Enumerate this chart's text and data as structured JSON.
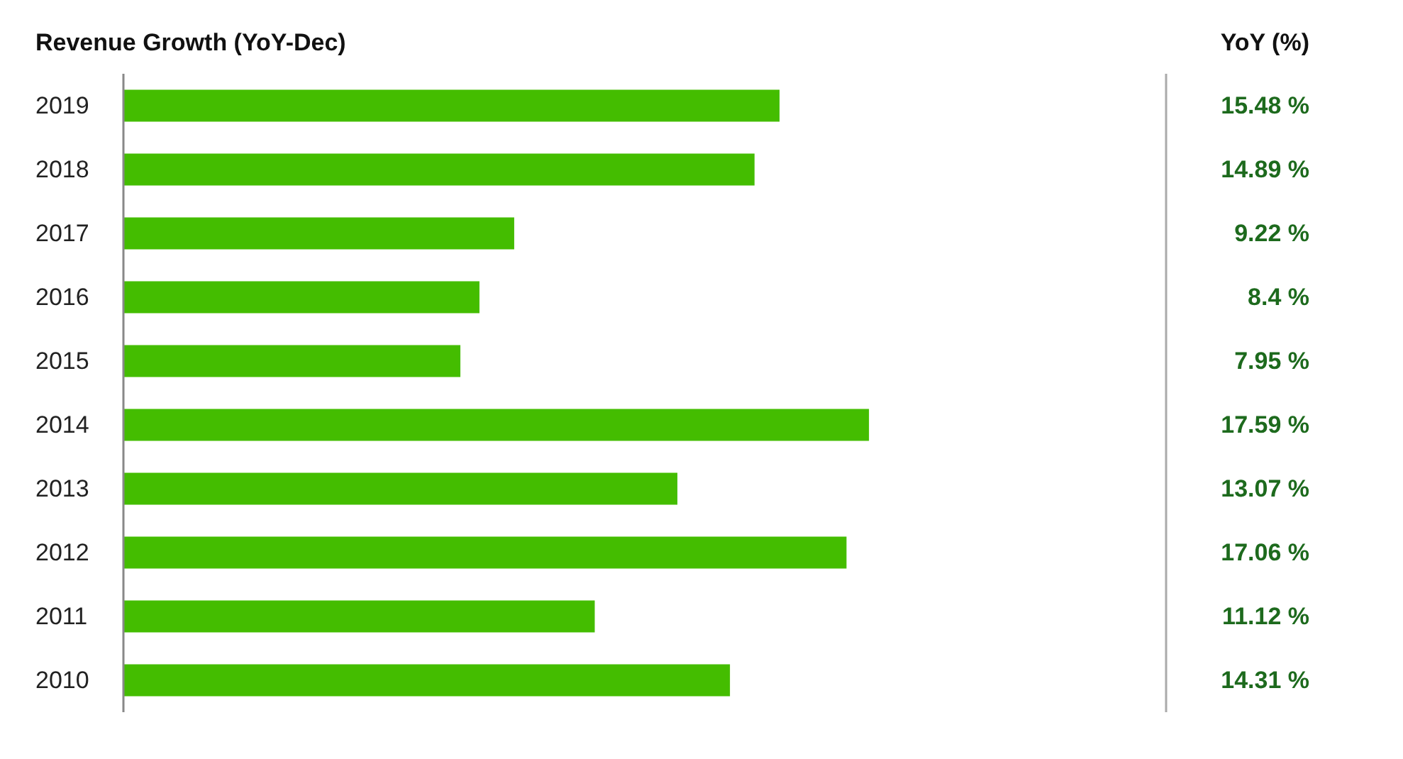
{
  "chart_data": {
    "type": "bar",
    "orientation": "horizontal",
    "title": "Revenue Growth (YoY-Dec)",
    "annotations": [
      "YoY (%)"
    ],
    "categories": [
      "2019",
      "2018",
      "2017",
      "2016",
      "2015",
      "2014",
      "2013",
      "2012",
      "2011",
      "2010"
    ],
    "values": [
      15.48,
      14.89,
      9.22,
      8.4,
      7.95,
      17.59,
      13.07,
      17.06,
      11.12,
      14.31
    ],
    "value_labels": [
      "15.48 %",
      "14.89 %",
      "9.22 %",
      "8.4 %",
      "7.95 %",
      "17.59 %",
      "13.07 %",
      "17.06 %",
      "11.12 %",
      "14.31 %"
    ],
    "color": "#44bd00",
    "xlim": [
      0,
      24.6
    ]
  }
}
